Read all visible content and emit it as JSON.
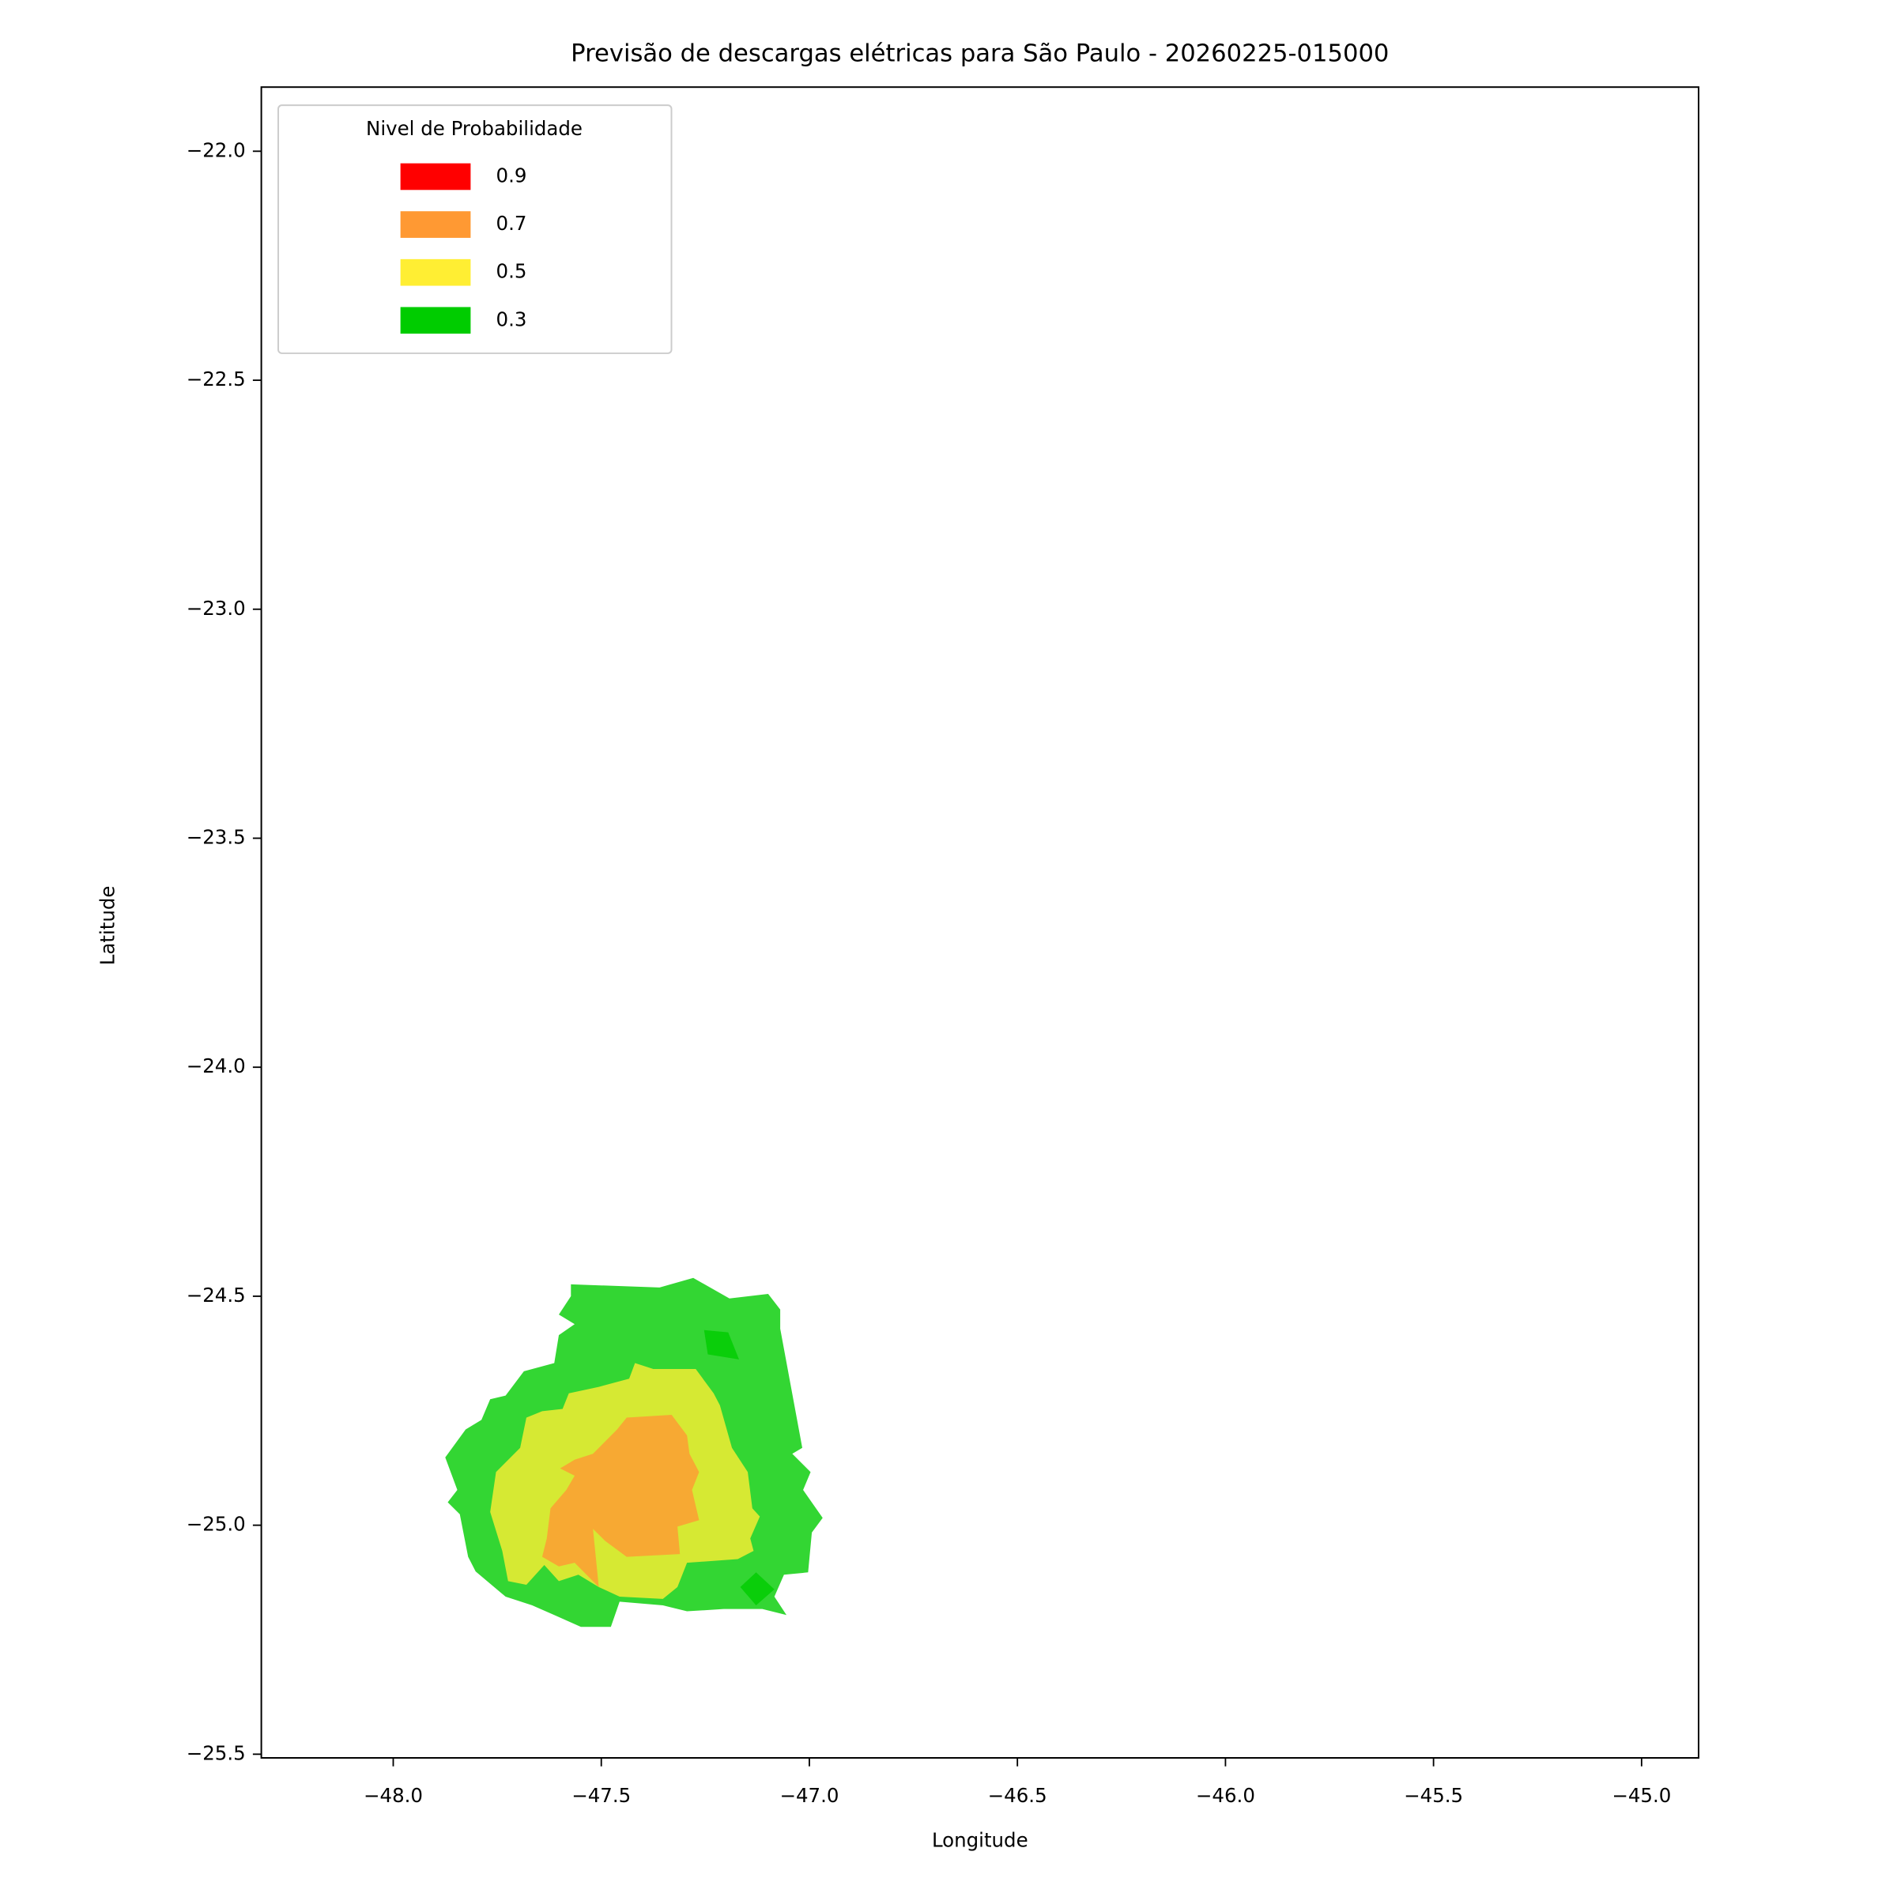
{
  "chart_data": {
    "type": "contour",
    "title": "Previsão de descargas elétricas para São Paulo - 20260225-015000",
    "x_label": "Longitude",
    "y_label": "Latitude",
    "xlim": [
      -48.317,
      -44.863
    ],
    "ylim": [
      -25.508,
      -21.86
    ],
    "xticks": [
      {
        "value": -48.0,
        "label": "−48.0"
      },
      {
        "value": -47.5,
        "label": "−47.5"
      },
      {
        "value": -47.0,
        "label": "−47.0"
      },
      {
        "value": -46.5,
        "label": "−46.5"
      },
      {
        "value": -46.0,
        "label": "−46.0"
      },
      {
        "value": -45.5,
        "label": "−45.5"
      },
      {
        "value": -45.0,
        "label": "−45.0"
      }
    ],
    "yticks": [
      {
        "value": -22.0,
        "label": "−22.0"
      },
      {
        "value": -22.5,
        "label": "−22.5"
      },
      {
        "value": -23.0,
        "label": "−23.0"
      },
      {
        "value": -23.5,
        "label": "−23.5"
      },
      {
        "value": -24.0,
        "label": "−24.0"
      },
      {
        "value": -24.5,
        "label": "−24.5"
      },
      {
        "value": -25.0,
        "label": "−25.0"
      },
      {
        "value": -25.5,
        "label": "−25.5"
      }
    ],
    "legend_title": "Nivel de Probabilidade",
    "legend_position": "upper-left",
    "alpha": 0.8,
    "series": [
      {
        "name": "0.9",
        "color": "#ff0000"
      },
      {
        "name": "0.7",
        "color": "#ff9933",
        "polygons": [
          {
            "x": [
              -47.462,
              -47.439,
              -47.331,
              -47.294,
              -47.288,
              -47.265,
              -47.282,
              -47.265,
              -47.317,
              -47.311,
              -47.439,
              -47.491,
              -47.52,
              -47.506,
              -47.564,
              -47.602,
              -47.642,
              -47.631,
              -47.622,
              -47.584,
              -47.564,
              -47.599,
              -47.564,
              -47.52
            ],
            "y": [
              -24.791,
              -24.765,
              -24.759,
              -24.804,
              -24.844,
              -24.884,
              -24.923,
              -24.989,
              -25.003,
              -25.063,
              -25.069,
              -25.034,
              -25.008,
              -25.135,
              -25.082,
              -25.09,
              -25.069,
              -25.029,
              -24.963,
              -24.923,
              -24.892,
              -24.876,
              -24.857,
              -24.844
            ]
          }
        ]
      },
      {
        "name": "0.5",
        "color": "#ffee33",
        "polygons": [
          {
            "x": [
              -47.433,
              -47.419,
              -47.375,
              -47.273,
              -47.23,
              -47.215,
              -47.186,
              -47.148,
              -47.137,
              -47.119,
              -47.142,
              -47.134,
              -47.172,
              -47.294,
              -47.317,
              -47.352,
              -47.456,
              -47.506,
              -47.555,
              -47.602,
              -47.637,
              -47.68,
              -47.724,
              -47.738,
              -47.767,
              -47.753,
              -47.695,
              -47.68,
              -47.642,
              -47.593,
              -47.578,
              -47.506
            ],
            "y": [
              -24.68,
              -24.646,
              -24.659,
              -24.659,
              -24.712,
              -24.738,
              -24.831,
              -24.884,
              -24.963,
              -24.981,
              -25.029,
              -25.056,
              -25.074,
              -25.082,
              -25.135,
              -25.161,
              -25.156,
              -25.135,
              -25.108,
              -25.122,
              -25.087,
              -25.13,
              -25.122,
              -25.056,
              -24.971,
              -24.884,
              -24.831,
              -24.765,
              -24.751,
              -24.746,
              -24.712,
              -24.698
            ]
          }
        ]
      },
      {
        "name": "0.3",
        "color": "#00cc00",
        "polygons": [
          {
            "x": [
              -47.573,
              -47.36,
              -47.279,
              -47.192,
              -47.099,
              -47.07,
              -47.07,
              -47.017,
              -47.041,
              -46.997,
              -47.015,
              -46.968,
              -46.994,
              -47.003,
              -47.061,
              -47.084,
              -47.055,
              -47.113,
              -47.206,
              -47.294,
              -47.352,
              -47.456,
              -47.477,
              -47.549,
              -47.613,
              -47.666,
              -47.73,
              -47.802,
              -47.82,
              -47.84,
              -47.869,
              -47.846,
              -47.875,
              -47.826,
              -47.788,
              -47.767,
              -47.73,
              -47.686,
              -47.613,
              -47.602,
              -47.564,
              -47.602,
              -47.573
            ],
            "y": [
              -24.474,
              -24.481,
              -24.46,
              -24.505,
              -24.495,
              -24.529,
              -24.571,
              -24.831,
              -24.844,
              -24.884,
              -24.923,
              -24.984,
              -25.016,
              -25.103,
              -25.108,
              -25.156,
              -25.196,
              -25.183,
              -25.183,
              -25.188,
              -25.175,
              -25.167,
              -25.222,
              -25.222,
              -25.196,
              -25.175,
              -25.156,
              -25.101,
              -25.069,
              -24.976,
              -24.95,
              -24.923,
              -24.852,
              -24.791,
              -24.77,
              -24.725,
              -24.717,
              -24.664,
              -24.646,
              -24.585,
              -24.561,
              -24.54,
              -24.5
            ]
          },
          {
            "x": [
              -47.253,
              -47.195,
              -47.169,
              -47.244
            ],
            "y": [
              -24.574,
              -24.579,
              -24.638,
              -24.627
            ]
          },
          {
            "x": [
              -47.166,
              -47.128,
              -47.084,
              -47.128
            ],
            "y": [
              -25.135,
              -25.103,
              -25.14,
              -25.175
            ]
          }
        ]
      }
    ]
  }
}
